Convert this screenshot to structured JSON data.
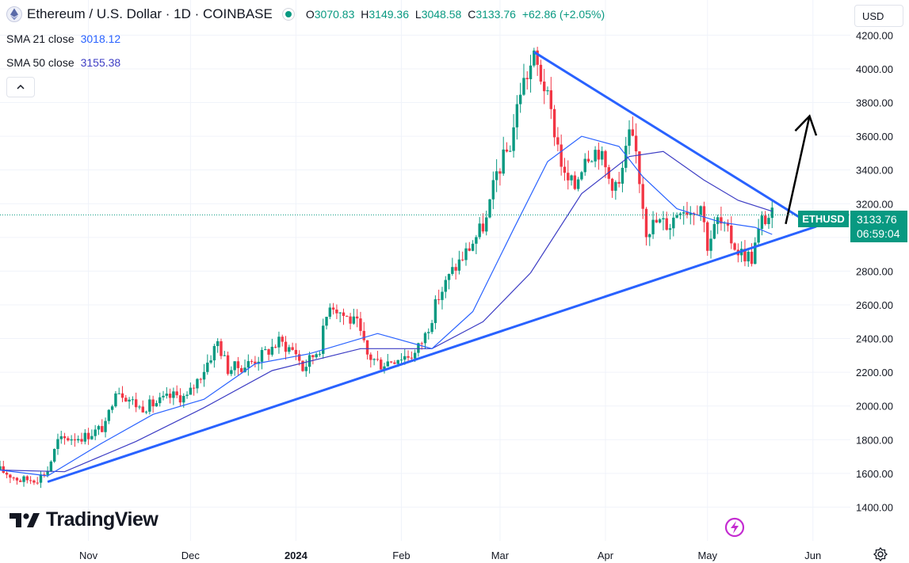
{
  "header": {
    "title": "Ethereum / U.S. Dollar · 1D · COINBASE",
    "ohlc": {
      "o_label": "O",
      "o": "3070.83",
      "h_label": "H",
      "h": "3149.36",
      "l_label": "L",
      "l": "3048.58",
      "c_label": "C",
      "c": "3133.76",
      "change": "+62.86 (+2.05%)"
    }
  },
  "indicators": [
    {
      "label": "SMA 21 close",
      "value": "3018.12"
    },
    {
      "label": "SMA 50 close",
      "value": "3155.38"
    }
  ],
  "currency": "USD",
  "symbol_tag": "ETHUSD",
  "price_tag": {
    "price": "3133.76",
    "countdown": "06:59:04"
  },
  "brand": "TradingView",
  "colors": {
    "up": "#089981",
    "down": "#f23645",
    "sma21": "#2962ff",
    "sma50": "#3d3dc4",
    "trendline": "#2962ff",
    "projection": "#000000"
  },
  "chart_data": {
    "type": "candlestick",
    "y_ticks": [
      1400,
      1600,
      1800,
      2000,
      2200,
      2400,
      2600,
      2800,
      3000,
      3200,
      3400,
      3600,
      3800,
      4000,
      4200
    ],
    "y_tick_labels": [
      "1400.00",
      "1600.00",
      "1800.00",
      "2000.00",
      "2200.00",
      "2400.00",
      "2600.00",
      "2800.00",
      "3000.00",
      "3200.00",
      "3400.00",
      "3600.00",
      "3800.00",
      "4000.00",
      "4200.00"
    ],
    "ylim": [
      1200,
      4230
    ],
    "x_labels": [
      {
        "label": "Nov",
        "date": "2023-11-01"
      },
      {
        "label": "Dec",
        "date": "2023-12-01"
      },
      {
        "label": "2024",
        "date": "2024-01-01"
      },
      {
        "label": "Feb",
        "date": "2024-02-01"
      },
      {
        "label": "Mar",
        "date": "2024-03-01"
      },
      {
        "label": "Apr",
        "date": "2024-04-01"
      },
      {
        "label": "May",
        "date": "2024-05-01"
      },
      {
        "label": "Jun",
        "date": "2024-06-01"
      }
    ],
    "xlim": [
      "2023-10-06",
      "2024-06-12"
    ],
    "close_path": [
      [
        "2023-10-06",
        1620
      ],
      [
        "2023-10-12",
        1560
      ],
      [
        "2023-10-17",
        1570
      ],
      [
        "2023-10-20",
        1620
      ],
      [
        "2023-10-23",
        1790
      ],
      [
        "2023-10-26",
        1810
      ],
      [
        "2023-10-31",
        1820
      ],
      [
        "2023-11-06",
        1880
      ],
      [
        "2023-11-09",
        2110
      ],
      [
        "2023-11-12",
        2060
      ],
      [
        "2023-11-16",
        1990
      ],
      [
        "2023-11-20",
        2010
      ],
      [
        "2023-11-26",
        2060
      ],
      [
        "2023-11-30",
        2050
      ],
      [
        "2023-12-05",
        2220
      ],
      [
        "2023-12-09",
        2380
      ],
      [
        "2023-12-12",
        2220
      ],
      [
        "2023-12-17",
        2240
      ],
      [
        "2023-12-22",
        2300
      ],
      [
        "2023-12-27",
        2380
      ],
      [
        "2024-01-01",
        2320
      ],
      [
        "2024-01-03",
        2220
      ],
      [
        "2024-01-08",
        2350
      ],
      [
        "2024-01-11",
        2620
      ],
      [
        "2024-01-15",
        2540
      ],
      [
        "2024-01-19",
        2480
      ],
      [
        "2024-01-22",
        2300
      ],
      [
        "2024-01-26",
        2250
      ],
      [
        "2024-01-31",
        2290
      ],
      [
        "2024-02-05",
        2310
      ],
      [
        "2024-02-08",
        2420
      ],
      [
        "2024-02-12",
        2650
      ],
      [
        "2024-02-16",
        2800
      ],
      [
        "2024-02-20",
        2910
      ],
      [
        "2024-02-26",
        3100
      ],
      [
        "2024-02-29",
        3380
      ],
      [
        "2024-03-04",
        3550
      ],
      [
        "2024-03-07",
        3880
      ],
      [
        "2024-03-11",
        4060
      ],
      [
        "2024-03-14",
        3900
      ],
      [
        "2024-03-18",
        3550
      ],
      [
        "2024-03-20",
        3350
      ],
      [
        "2024-03-23",
        3300
      ],
      [
        "2024-03-26",
        3500
      ],
      [
        "2024-03-30",
        3520
      ],
      [
        "2024-04-02",
        3350
      ],
      [
        "2024-04-05",
        3300
      ],
      [
        "2024-04-08",
        3600
      ],
      [
        "2024-04-10",
        3500
      ],
      [
        "2024-04-13",
        3050
      ],
      [
        "2024-04-16",
        3090
      ],
      [
        "2024-04-20",
        3080
      ],
      [
        "2024-04-23",
        3190
      ],
      [
        "2024-04-26",
        3160
      ],
      [
        "2024-04-29",
        3200
      ],
      [
        "2024-05-01",
        2960
      ],
      [
        "2024-05-04",
        3100
      ],
      [
        "2024-05-07",
        3020
      ],
      [
        "2024-05-10",
        2920
      ],
      [
        "2024-05-14",
        2880
      ],
      [
        "2024-05-17",
        3100
      ],
      [
        "2024-05-20",
        3133.76
      ]
    ],
    "sma21_path": [
      [
        "2023-10-06",
        1620
      ],
      [
        "2023-10-20",
        1585
      ],
      [
        "2023-11-05",
        1780
      ],
      [
        "2023-11-20",
        1950
      ],
      [
        "2023-12-05",
        2040
      ],
      [
        "2023-12-20",
        2250
      ],
      [
        "2024-01-05",
        2310
      ],
      [
        "2024-01-25",
        2430
      ],
      [
        "2024-02-10",
        2340
      ],
      [
        "2024-02-22",
        2560
      ],
      [
        "2024-03-05",
        3050
      ],
      [
        "2024-03-15",
        3450
      ],
      [
        "2024-03-25",
        3600
      ],
      [
        "2024-04-05",
        3540
      ],
      [
        "2024-04-12",
        3360
      ],
      [
        "2024-04-22",
        3170
      ],
      [
        "2024-05-05",
        3090
      ],
      [
        "2024-05-15",
        3060
      ],
      [
        "2024-05-20",
        3018.12
      ]
    ],
    "sma50_path": [
      [
        "2023-10-06",
        1620
      ],
      [
        "2023-10-25",
        1610
      ],
      [
        "2023-11-15",
        1790
      ],
      [
        "2023-12-05",
        1990
      ],
      [
        "2023-12-25",
        2210
      ],
      [
        "2024-01-20",
        2340
      ],
      [
        "2024-02-10",
        2340
      ],
      [
        "2024-02-25",
        2500
      ],
      [
        "2024-03-10",
        2790
      ],
      [
        "2024-03-25",
        3260
      ],
      [
        "2024-04-08",
        3480
      ],
      [
        "2024-04-18",
        3510
      ],
      [
        "2024-04-30",
        3340
      ],
      [
        "2024-05-10",
        3220
      ],
      [
        "2024-05-20",
        3155.38
      ]
    ],
    "trendlines": [
      {
        "from": [
          "2023-10-20",
          1550
        ],
        "to": [
          "2024-06-02",
          3065
        ]
      },
      {
        "from": [
          "2024-03-11",
          4100
        ],
        "to": [
          "2024-06-01",
          3070
        ]
      }
    ],
    "projection_arrow": {
      "from": [
        "2024-05-24",
        3080
      ],
      "to": [
        "2024-05-31",
        3720
      ]
    }
  }
}
